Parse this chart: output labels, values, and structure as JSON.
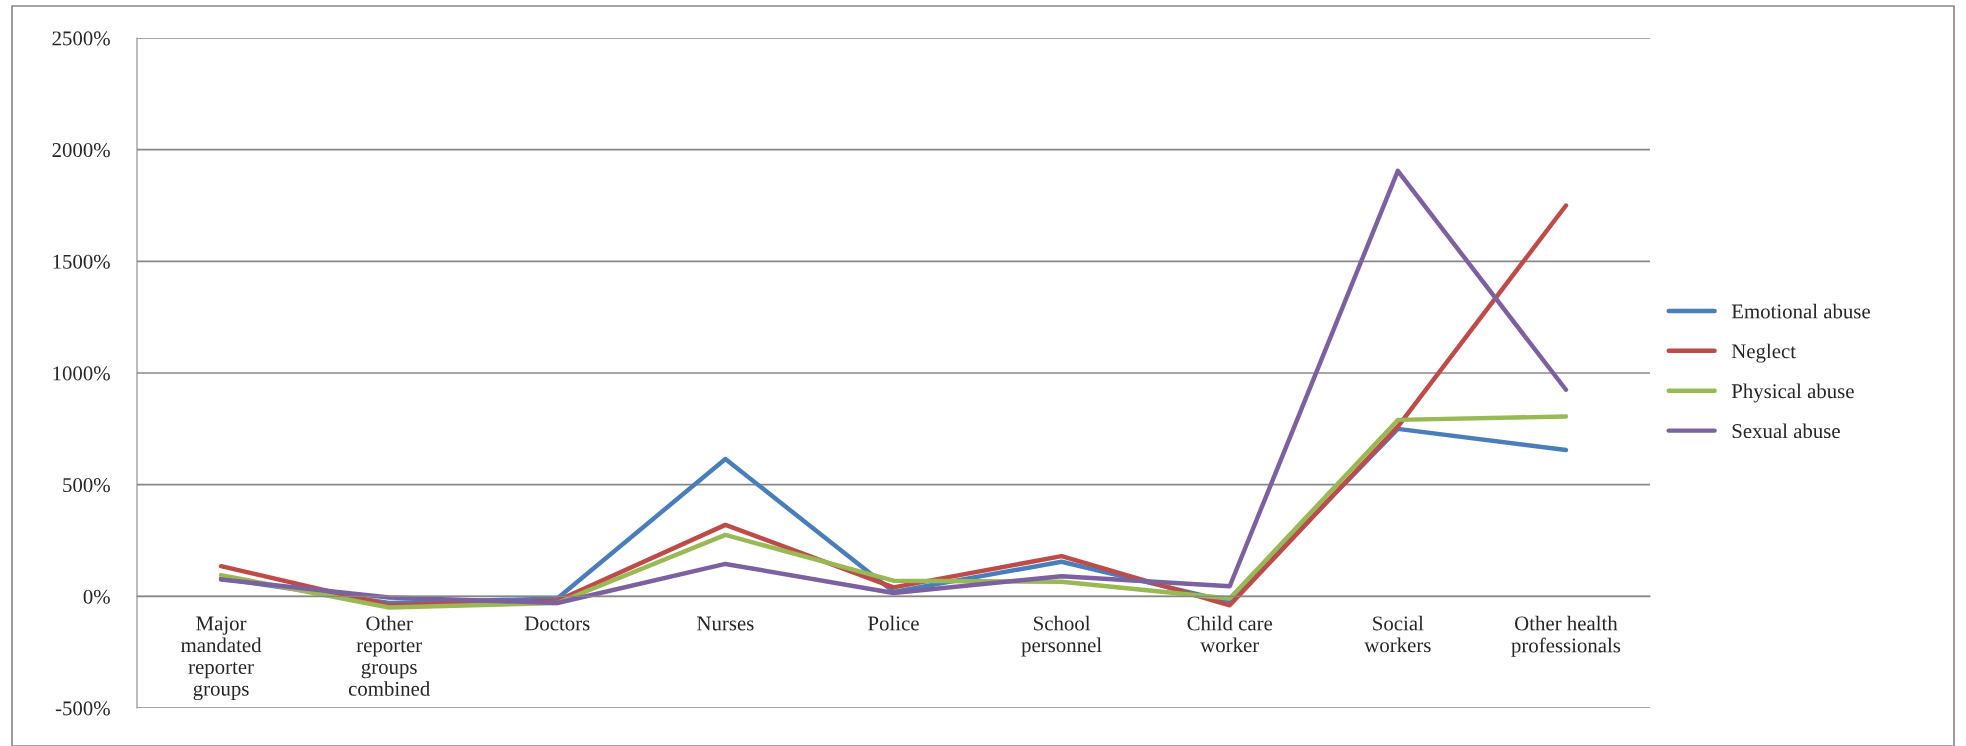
{
  "chart_data": {
    "type": "line",
    "categories": [
      "Major\nmandated\nreporter\ngroups",
      "Other\nreporter\ngroups\ncombined",
      "Doctors",
      "Nurses",
      "Police",
      "School\npersonnel",
      "Child care\nworker",
      "Social\nworkers",
      "Other health\nprofessionals"
    ],
    "series": [
      {
        "name": "Emotional abuse",
        "color": "#4a7ebb",
        "values": [
          80,
          -30,
          -10,
          615,
          20,
          155,
          -25,
          750,
          655
        ]
      },
      {
        "name": "Neglect",
        "color": "#be4b48",
        "values": [
          135,
          -40,
          -20,
          320,
          40,
          180,
          -40,
          760,
          1750
        ]
      },
      {
        "name": "Physical abuse",
        "color": "#98b954",
        "values": [
          95,
          -50,
          -30,
          275,
          70,
          65,
          -10,
          790,
          805
        ]
      },
      {
        "name": "Sexual abuse",
        "color": "#7d60a0",
        "values": [
          75,
          -5,
          -30,
          145,
          15,
          90,
          45,
          1905,
          925
        ]
      }
    ],
    "ylim": [
      -500,
      2500
    ],
    "yticks": [
      {
        "value": -500,
        "label": "-500%"
      },
      {
        "value": 0,
        "label": "0%"
      },
      {
        "value": 500,
        "label": "500%"
      },
      {
        "value": 1000,
        "label": "1000%"
      },
      {
        "value": 1500,
        "label": "1500%"
      },
      {
        "value": 2000,
        "label": "2000%"
      },
      {
        "value": 2500,
        "label": "2500%"
      }
    ],
    "grid": "y",
    "legend": "right",
    "marker": "none",
    "line_style": "solid"
  }
}
